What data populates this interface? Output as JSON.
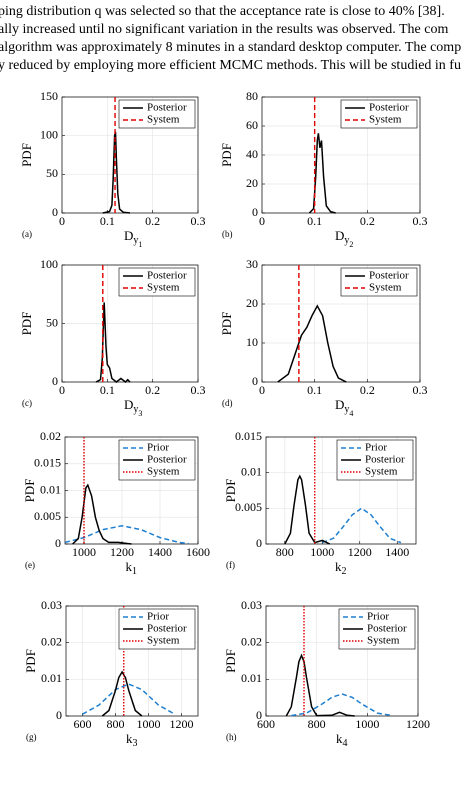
{
  "text_lines": [
    "ping distribution q was selected so that the acceptance rate is close to 40% [38].",
    "ally increased until no significant variation in the results was observed. The com",
    "algorithm was approximately 8 minutes in a standard desktop computer. The comp",
    "y reduced by employing more efficient MCMC methods. This will be studied in fu"
  ],
  "chart_data": [
    {
      "type": "line",
      "panel": "(a)",
      "ylabel": "PDF",
      "xlabel": "D",
      "xlabel_sub": "y",
      "xlabel_subsub": "1",
      "xlim": [
        0,
        0.3
      ],
      "xticks": [
        0,
        0.1,
        0.2,
        0.3
      ],
      "ylim": [
        0,
        150
      ],
      "yticks": [
        0,
        50,
        100,
        150
      ],
      "grid": true,
      "legend": "upper right",
      "series": [
        {
          "name": "Posterior",
          "color": "#000000",
          "style": "solid",
          "x": [
            0.09,
            0.105,
            0.11,
            0.113,
            0.116,
            0.118,
            0.12,
            0.123,
            0.127,
            0.135,
            0.15
          ],
          "values": [
            0,
            2,
            10,
            45,
            100,
            105,
            70,
            25,
            5,
            1,
            0
          ]
        },
        {
          "name": "System",
          "color": "#e00000",
          "style": "dashed",
          "vline": 0.117
        }
      ]
    },
    {
      "type": "line",
      "panel": "(b)",
      "ylabel": "PDF",
      "xlabel": "D",
      "xlabel_sub": "y",
      "xlabel_subsub": "2",
      "xlim": [
        0,
        0.3
      ],
      "xticks": [
        0,
        0.1,
        0.2,
        0.3
      ],
      "ylim": [
        0,
        80
      ],
      "yticks": [
        0,
        20,
        40,
        60,
        80
      ],
      "grid": true,
      "legend": "upper right",
      "series": [
        {
          "name": "Posterior",
          "color": "#000000",
          "style": "solid",
          "x": [
            0.09,
            0.098,
            0.102,
            0.105,
            0.107,
            0.11,
            0.113,
            0.117,
            0.122,
            0.13,
            0.14
          ],
          "values": [
            0,
            3,
            25,
            50,
            55,
            45,
            50,
            25,
            5,
            1,
            0
          ]
        },
        {
          "name": "System",
          "color": "#e00000",
          "style": "dashed",
          "vline": 0.1
        }
      ]
    },
    {
      "type": "line",
      "panel": "(c)",
      "ylabel": "PDF",
      "xlabel": "D",
      "xlabel_sub": "y",
      "xlabel_subsub": "3",
      "xlim": [
        0,
        0.3
      ],
      "xticks": [
        0,
        0.1,
        0.2,
        0.3
      ],
      "ylim": [
        0,
        100
      ],
      "yticks": [
        0,
        50,
        100
      ],
      "grid": true,
      "legend": "upper right",
      "series": [
        {
          "name": "Posterior",
          "color": "#000000",
          "style": "solid",
          "x": [
            0.075,
            0.085,
            0.089,
            0.093,
            0.097,
            0.1,
            0.105,
            0.11,
            0.12,
            0.13,
            0.14,
            0.145,
            0.15
          ],
          "values": [
            0,
            2,
            20,
            68,
            30,
            15,
            12,
            3,
            0,
            3,
            0,
            2,
            0
          ]
        },
        {
          "name": "System",
          "color": "#e00000",
          "style": "dashed",
          "vline": 0.09
        }
      ]
    },
    {
      "type": "line",
      "panel": "(d)",
      "ylabel": "PDF",
      "xlabel": "D",
      "xlabel_sub": "y",
      "xlabel_subsub": "4",
      "xlim": [
        0,
        0.3
      ],
      "xticks": [
        0,
        0.1,
        0.2,
        0.3
      ],
      "ylim": [
        0,
        30
      ],
      "yticks": [
        0,
        10,
        20,
        30
      ],
      "grid": true,
      "legend": "upper right",
      "series": [
        {
          "name": "Posterior",
          "color": "#000000",
          "style": "solid",
          "x": [
            0.03,
            0.05,
            0.065,
            0.075,
            0.085,
            0.095,
            0.105,
            0.115,
            0.125,
            0.135,
            0.145,
            0.16
          ],
          "values": [
            0,
            2,
            8,
            12,
            14,
            17,
            19.5,
            17,
            10,
            4,
            1,
            0
          ]
        },
        {
          "name": "System",
          "color": "#e00000",
          "style": "dashed",
          "vline": 0.07
        }
      ]
    },
    {
      "type": "line",
      "panel": "(e)",
      "ylabel": "PDF",
      "xlabel": "k",
      "xlabel_sub": "1",
      "xlim": [
        900,
        1600
      ],
      "xticks": [
        1000,
        1200,
        1400,
        1600
      ],
      "ylim": [
        0,
        0.02
      ],
      "yticks": [
        0,
        0.005,
        0.01,
        0.015,
        0.02
      ],
      "grid": true,
      "legend": "upper right",
      "series": [
        {
          "name": "Prior",
          "color": "#1f7fd0",
          "style": "dashed",
          "x": [
            900,
            1000,
            1100,
            1200,
            1300,
            1400,
            1500,
            1550
          ],
          "values": [
            0.0003,
            0.0012,
            0.0027,
            0.0034,
            0.0027,
            0.0012,
            0.0003,
            0.0001
          ]
        },
        {
          "name": "Posterior",
          "color": "#000000",
          "style": "solid",
          "x": [
            940,
            970,
            990,
            1010,
            1020,
            1040,
            1060,
            1080,
            1100,
            1130,
            1180,
            1250
          ],
          "values": [
            0,
            0.001,
            0.005,
            0.0105,
            0.011,
            0.009,
            0.005,
            0.0025,
            0.001,
            0.0003,
            0.0003,
            0
          ]
        },
        {
          "name": "System",
          "color": "#e00000",
          "style": "dotted",
          "vline": 1000
        }
      ]
    },
    {
      "type": "line",
      "panel": "(f)",
      "ylabel": "PDF",
      "xlabel": "k",
      "xlabel_sub": "2",
      "xlim": [
        700,
        1500
      ],
      "xticks": [
        800,
        1000,
        1200,
        1400
      ],
      "ylim": [
        0,
        0.015
      ],
      "yticks": [
        0,
        0.005,
        0.01,
        0.015
      ],
      "grid": true,
      "legend": "upper right",
      "series": [
        {
          "name": "Prior",
          "color": "#1f7fd0",
          "style": "dashed",
          "x": [
            1000,
            1060,
            1120,
            1160,
            1210,
            1260,
            1300,
            1360,
            1420
          ],
          "values": [
            0.0002,
            0.0008,
            0.0027,
            0.0041,
            0.005,
            0.0041,
            0.0027,
            0.0008,
            0.0002
          ]
        },
        {
          "name": "Posterior",
          "color": "#000000",
          "style": "solid",
          "x": [
            800,
            830,
            850,
            870,
            880,
            890,
            910,
            930,
            960,
            1000,
            1040
          ],
          "values": [
            0,
            0.0015,
            0.0055,
            0.009,
            0.0095,
            0.009,
            0.0055,
            0.0015,
            0.0002,
            0.0005,
            0
          ]
        },
        {
          "name": "System",
          "color": "#e00000",
          "style": "dotted",
          "vline": 960
        }
      ]
    },
    {
      "type": "line",
      "panel": "(g)",
      "ylabel": "PDF",
      "xlabel": "k",
      "xlabel_sub": "3",
      "xlim": [
        500,
        1300
      ],
      "xticks": [
        600,
        800,
        1000,
        1200
      ],
      "ylim": [
        0,
        0.03
      ],
      "yticks": [
        0,
        0.01,
        0.02,
        0.03
      ],
      "grid": true,
      "legend": "upper right",
      "series": [
        {
          "name": "Prior",
          "color": "#1f7fd0",
          "style": "dashed",
          "x": [
            600,
            700,
            800,
            880,
            960,
            1060,
            1160
          ],
          "values": [
            0.0005,
            0.003,
            0.0072,
            0.0087,
            0.0072,
            0.003,
            0.0005
          ]
        },
        {
          "name": "Posterior",
          "color": "#000000",
          "style": "solid",
          "x": [
            720,
            760,
            800,
            820,
            840,
            860,
            880,
            920,
            960
          ],
          "values": [
            0,
            0.0015,
            0.007,
            0.0105,
            0.012,
            0.0105,
            0.007,
            0.0015,
            0
          ]
        },
        {
          "name": "System",
          "color": "#e00000",
          "style": "dotted",
          "vline": 850
        }
      ]
    },
    {
      "type": "line",
      "panel": "(h)",
      "ylabel": "PDF",
      "xlabel": "k",
      "xlabel_sub": "4",
      "xlim": [
        600,
        1200
      ],
      "xticks": [
        600,
        800,
        1000,
        1200
      ],
      "ylim": [
        0,
        0.03
      ],
      "yticks": [
        0,
        0.01,
        0.02,
        0.03
      ],
      "grid": true,
      "legend": "upper right",
      "series": [
        {
          "name": "Prior",
          "color": "#1f7fd0",
          "style": "dashed",
          "x": [
            700,
            760,
            820,
            860,
            900,
            940,
            980,
            1040,
            1100
          ],
          "values": [
            0.0001,
            0.0008,
            0.0032,
            0.0051,
            0.006,
            0.0051,
            0.0032,
            0.0008,
            0.0001
          ]
        },
        {
          "name": "Posterior",
          "color": "#000000",
          "style": "solid",
          "x": [
            680,
            700,
            720,
            730,
            740,
            750,
            760,
            780,
            800,
            860,
            890,
            920,
            950
          ],
          "values": [
            0,
            0.0025,
            0.0105,
            0.0148,
            0.0165,
            0.0148,
            0.0105,
            0.0025,
            0.0001,
            0.0002,
            0.001,
            0.0002,
            0
          ]
        },
        {
          "name": "System",
          "color": "#e00000",
          "style": "dotted",
          "vline": 750
        }
      ]
    }
  ]
}
